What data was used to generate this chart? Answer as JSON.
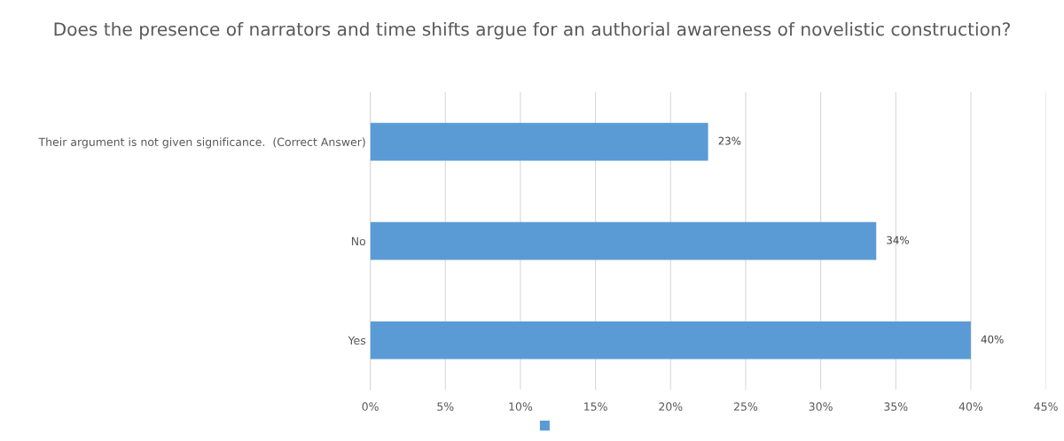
{
  "chart_data": {
    "type": "bar",
    "orientation": "horizontal",
    "title": "Does the presence of narrators and time shifts argue for an authorial awareness of novelistic construction?",
    "categories": [
      "Their argument is not given significance.  (Correct Answer)",
      "No",
      "Yes"
    ],
    "series": [
      {
        "color": "#5b9bd5",
        "values": [
          22.5,
          33.7,
          40.0
        ],
        "value_labels": [
          "23%",
          "34%",
          "40%"
        ]
      }
    ],
    "xlim": [
      0,
      45
    ],
    "xticks": [
      {
        "value": 0,
        "label": "0%"
      },
      {
        "value": 5,
        "label": "5%"
      },
      {
        "value": 10,
        "label": "10%"
      },
      {
        "value": 15,
        "label": "15%"
      },
      {
        "value": 20,
        "label": "20%"
      },
      {
        "value": 25,
        "label": "25%"
      },
      {
        "value": 30,
        "label": "30%"
      },
      {
        "value": 35,
        "label": "35%"
      },
      {
        "value": 40,
        "label": "40%"
      },
      {
        "value": 45,
        "label": "45%"
      }
    ],
    "grid": "x"
  }
}
